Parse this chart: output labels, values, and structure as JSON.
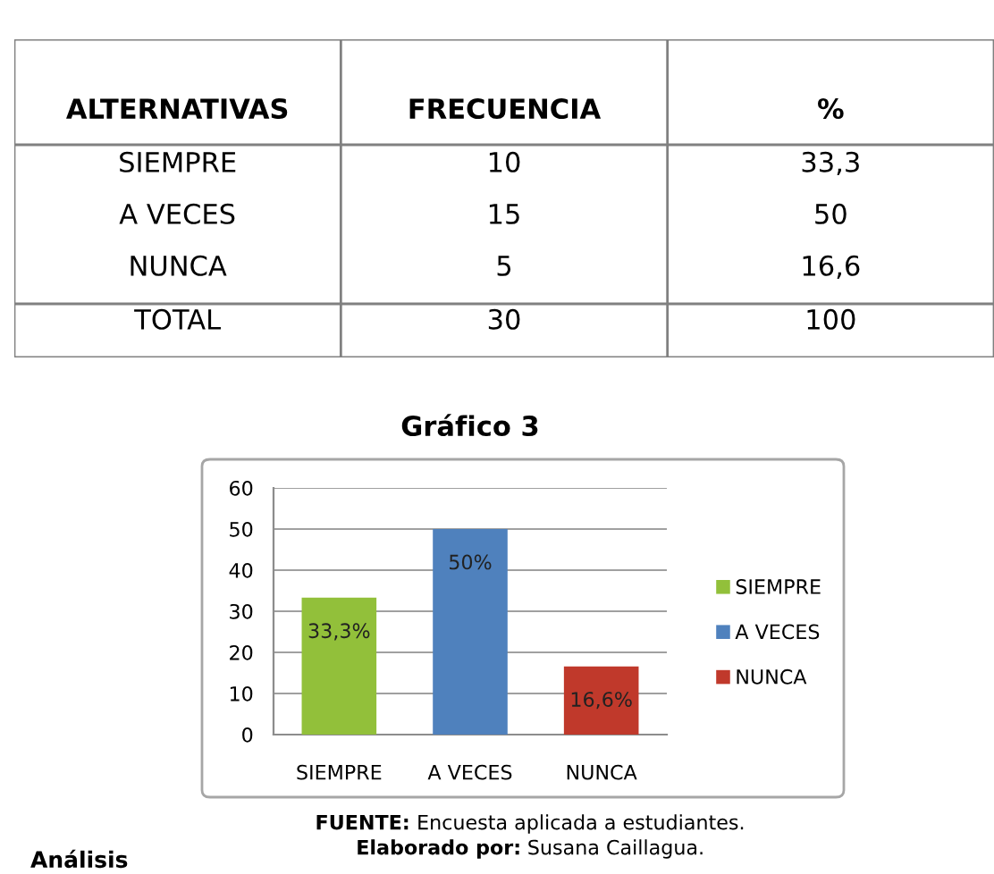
{
  "chart_data": [
    {
      "type": "other",
      "ylabel": "ALTERNATIVAS",
      "categories": [
        "SIEMPRE",
        "A VECES",
        "NUNCA",
        "TOTAL"
      ],
      "data_labels": true,
      "series": [
        {
          "name": "FRECUENCIA",
          "values": [
            10,
            15,
            5,
            30
          ]
        },
        {
          "name": "%",
          "values": [
            33.3,
            50,
            16.6,
            100
          ],
          "value_labels": [
            "33,3",
            "50",
            "16,6",
            "100"
          ]
        }
      ]
    },
    {
      "type": "bar",
      "title": "Gráfico 3",
      "categories": [
        "SIEMPRE",
        "A VECES",
        "NUNCA"
      ],
      "stacked": true,
      "series": [
        {
          "name": "SIEMPRE",
          "color": "#92c03a",
          "values": [
            33.3,
            null,
            null
          ],
          "value_labels": [
            "33,3%",
            null,
            null
          ]
        },
        {
          "name": "A VECES",
          "color": "#4f81bd",
          "values": [
            null,
            50,
            null
          ],
          "value_labels": [
            null,
            "50%",
            null
          ]
        },
        {
          "name": "NUNCA",
          "color": "#c0392b",
          "values": [
            null,
            null,
            16.6
          ],
          "value_labels": [
            null,
            null,
            "16,6%"
          ]
        }
      ],
      "ylim": [
        0,
        60
      ],
      "yticks": [
        0,
        10,
        20,
        30,
        40,
        50,
        60
      ],
      "grid": "y",
      "legend": "right",
      "annotations": [
        "FUENTE: Encuesta aplicada a estudiantes.",
        "Elaborado por: Susana Caillagua.",
        "Análisis"
      ]
    }
  ]
}
